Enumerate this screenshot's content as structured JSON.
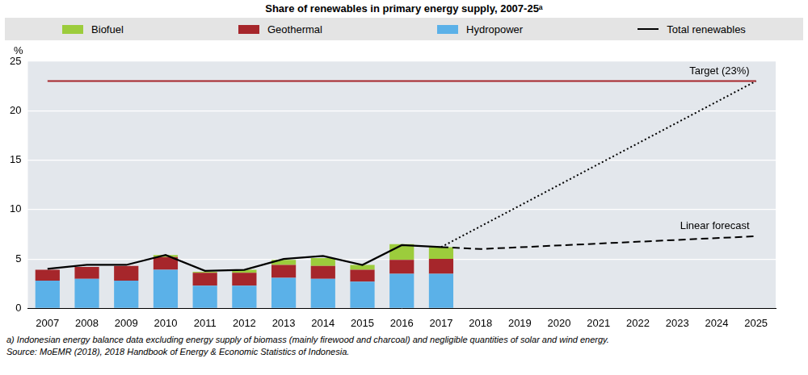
{
  "chart_data": {
    "type": "bar",
    "title": "Share of renewables in primary energy supply, 2007-25ᵃ",
    "y_label": "%",
    "categories": [
      "2007",
      "2008",
      "2009",
      "2010",
      "2011",
      "2012",
      "2013",
      "2014",
      "2015",
      "2016",
      "2017",
      "2018",
      "2019",
      "2020",
      "2021",
      "2022",
      "2023",
      "2024",
      "2025"
    ],
    "stacked": true,
    "grid": true,
    "legend": "top",
    "ylim": [
      0,
      25
    ],
    "yticks": [
      0,
      5,
      10,
      15,
      20,
      25
    ],
    "series": [
      {
        "name": "Biofuel",
        "color": "#9ccc3c",
        "values": [
          0,
          0,
          0,
          0.2,
          0.1,
          0.3,
          0.5,
          0.8,
          0.5,
          1.6,
          1.2,
          null,
          null,
          null,
          null,
          null,
          null,
          null,
          null
        ]
      },
      {
        "name": "Geothermal",
        "color": "#a6262b",
        "values": [
          1.1,
          1.2,
          1.5,
          1.3,
          1.3,
          1.3,
          1.3,
          1.3,
          1.2,
          1.4,
          1.5,
          null,
          null,
          null,
          null,
          null,
          null,
          null,
          null
        ]
      },
      {
        "name": "Hydropower",
        "color": "#5bb1e8",
        "values": [
          2.8,
          3.0,
          2.8,
          3.9,
          2.3,
          2.3,
          3.1,
          3.0,
          2.7,
          3.5,
          3.5,
          null,
          null,
          null,
          null,
          null,
          null,
          null,
          null
        ]
      },
      {
        "name": "Total renewables",
        "type": "line",
        "color": "#000000",
        "values": [
          4.0,
          4.4,
          4.4,
          5.4,
          3.8,
          3.9,
          5.0,
          5.3,
          4.4,
          6.4,
          6.2,
          null,
          null,
          null,
          null,
          null,
          null,
          null,
          null
        ]
      }
    ],
    "reference_lines": [
      {
        "name": "Target (23%)",
        "color": "#a6262b",
        "line_style": "solid",
        "values": [
          23,
          23,
          23,
          23,
          23,
          23,
          23,
          23,
          23,
          23,
          23,
          23,
          23,
          23,
          23,
          23,
          23,
          23,
          23
        ]
      },
      {
        "name": "Linear forecast",
        "color": "#000000",
        "line_style": "dashed",
        "values": [
          null,
          null,
          null,
          null,
          null,
          null,
          null,
          null,
          null,
          null,
          6.2,
          6.0,
          null,
          null,
          null,
          null,
          null,
          null,
          7.3
        ]
      },
      {
        "color": "#000000",
        "line_style": "dotted",
        "values": [
          null,
          null,
          null,
          null,
          null,
          null,
          null,
          null,
          null,
          null,
          6.2,
          null,
          null,
          null,
          null,
          null,
          null,
          null,
          23
        ]
      }
    ],
    "notes": [
      "a) Indonesian energy balance data excluding energy supply of biomass (mainly firewood and charcoal) and negligible quantities of solar and wind energy."
    ],
    "source": "Source: MoEMR (2018), 2018 Handbook of Energy & Economic Statistics of Indonesia."
  }
}
